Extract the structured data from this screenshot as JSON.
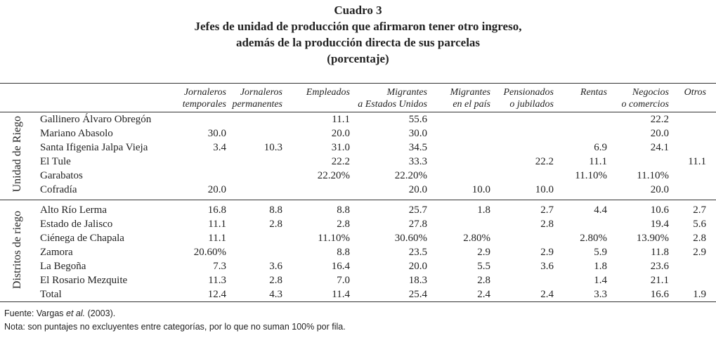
{
  "title": [
    "Cuadro 3",
    "Jefes de unidad de producción que afirmaron tener otro ingreso,",
    "además de la producción directa de sus parcelas",
    "(porcentaje)"
  ],
  "columns": [
    [
      "Jornaleros",
      "temporales"
    ],
    [
      "Jornaleros",
      "permanentes"
    ],
    [
      "Empleados",
      ""
    ],
    [
      "Migrantes",
      "a Estados Unidos"
    ],
    [
      "Migrantes",
      "en el país"
    ],
    [
      "Pensionados",
      "o jubilados"
    ],
    [
      "Rentas",
      ""
    ],
    [
      "Negocios",
      "o comercios"
    ],
    [
      "Otros",
      ""
    ]
  ],
  "groups": [
    {
      "label": "Unidad de Riego",
      "rows": [
        {
          "name": "Gallinero Álvaro Obregón",
          "values": [
            "",
            "",
            "11.1",
            "55.6",
            "",
            "",
            "",
            "22.2",
            ""
          ]
        },
        {
          "name": "Mariano Abasolo",
          "values": [
            "30.0",
            "",
            "20.0",
            "30.0",
            "",
            "",
            "",
            "20.0",
            ""
          ]
        },
        {
          "name": "Santa Ifigenia Jalpa Vieja",
          "values": [
            "3.4",
            "10.3",
            "31.0",
            "34.5",
            "",
            "",
            "6.9",
            "24.1",
            ""
          ]
        },
        {
          "name": "El Tule",
          "values": [
            "",
            "",
            "22.2",
            "33.3",
            "",
            "22.2",
            "11.1",
            "",
            "11.1"
          ]
        },
        {
          "name": "Garabatos",
          "values": [
            "",
            "",
            "22.20%",
            "22.20%",
            "",
            "",
            "11.10%",
            "11.10%",
            ""
          ]
        },
        {
          "name": "Cofradía",
          "values": [
            "20.0",
            "",
            "",
            "20.0",
            "10.0",
            "10.0",
            "",
            "20.0",
            ""
          ]
        }
      ]
    },
    {
      "label": "Distritos de riego",
      "rows": [
        {
          "name": "Alto Río Lerma",
          "values": [
            "16.8",
            "8.8",
            "8.8",
            "25.7",
            "1.8",
            "2.7",
            "4.4",
            "10.6",
            "2.7"
          ]
        },
        {
          "name": "Estado de Jalisco",
          "values": [
            "11.1",
            "2.8",
            "2.8",
            "27.8",
            "",
            "2.8",
            "",
            "19.4",
            "5.6"
          ]
        },
        {
          "name": "Ciénega de Chapala",
          "values": [
            "11.1",
            "",
            "11.10%",
            "30.60%",
            "2.80%",
            "",
            "2.80%",
            "13.90%",
            "2.8"
          ]
        },
        {
          "name": "Zamora",
          "values": [
            "20.60%",
            "",
            "8.8",
            "23.5",
            "2.9",
            "2.9",
            "5.9",
            "11.8",
            "2.9"
          ]
        },
        {
          "name": "La Begoña",
          "values": [
            "7.3",
            "3.6",
            "16.4",
            "20.0",
            "5.5",
            "3.6",
            "1.8",
            "23.6",
            ""
          ]
        },
        {
          "name": "El Rosario Mezquite",
          "values": [
            "11.3",
            "2.8",
            "7.0",
            "18.3",
            "2.8",
            "",
            "1.4",
            "21.1",
            ""
          ]
        },
        {
          "name": "Total",
          "values": [
            "12.4",
            "4.3",
            "11.4",
            "25.4",
            "2.4",
            "2.4",
            "3.3",
            "16.6",
            "1.9"
          ]
        }
      ]
    }
  ],
  "footnotes": {
    "source_prefix": "Fuente: Vargas ",
    "source_italic": "et al.",
    "source_suffix": " (2003).",
    "note": "Nota: son puntajes no excluyentes entre categorías, por lo que no suman 100% por fila."
  }
}
